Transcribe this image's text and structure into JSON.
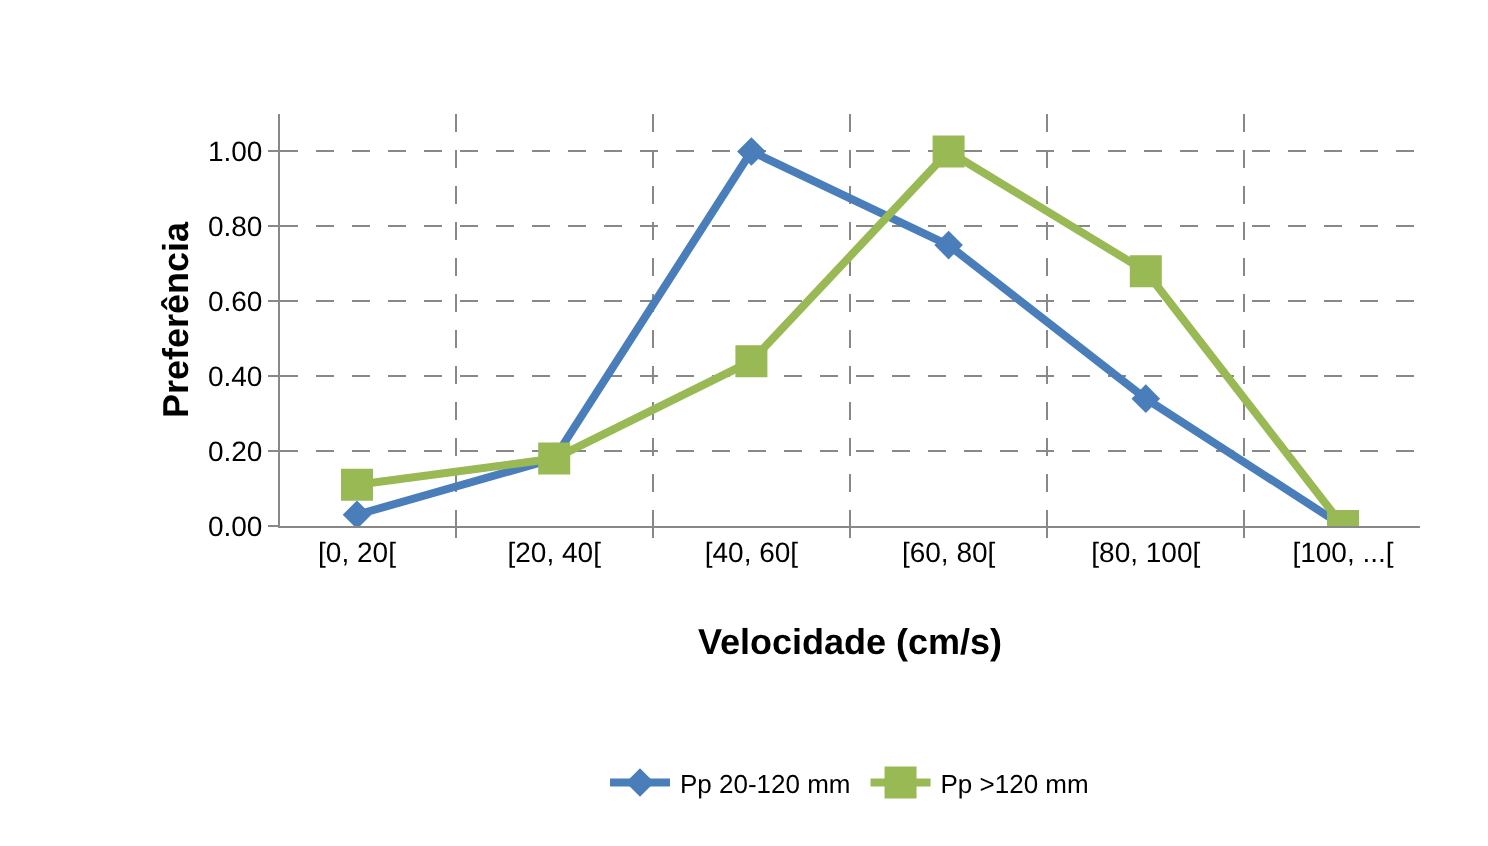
{
  "chart_data": {
    "type": "line",
    "xlabel": "Velocidade (cm/s)",
    "ylabel": "Preferência",
    "categories": [
      "[0, 20[",
      "[20, 40[",
      "[40, 60[",
      "[60, 80[",
      "[80, 100[",
      "[100, ...["
    ],
    "series": [
      {
        "name": "Pp 20-120 mm",
        "color": "#4a7ebb",
        "marker": "diamond",
        "values": [
          0.03,
          0.18,
          1.0,
          0.75,
          0.34,
          0.0
        ]
      },
      {
        "name": "Pp >120 mm",
        "color": "#98b954",
        "marker": "square",
        "values": [
          0.11,
          0.18,
          0.44,
          1.0,
          0.68,
          0.0
        ]
      }
    ],
    "ylim": [
      0,
      1.1
    ],
    "yticks": [
      {
        "value": 0,
        "label": "0.00"
      },
      {
        "value": 0.2,
        "label": "0.20"
      },
      {
        "value": 0.4,
        "label": "0.40"
      },
      {
        "value": 0.6,
        "label": "0.60"
      },
      {
        "value": 0.8,
        "label": "0.80"
      },
      {
        "value": 1,
        "label": "1.00"
      }
    ],
    "grid": true,
    "legend": "bottom",
    "line_style": "solid"
  }
}
